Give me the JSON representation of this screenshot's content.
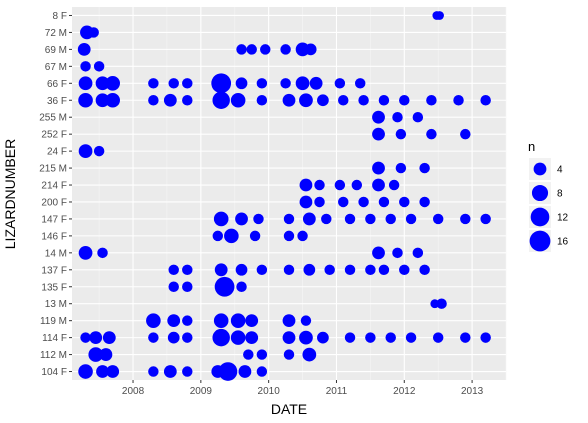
{
  "chart_data": {
    "type": "scatter",
    "xlabel": "DATE",
    "ylabel": "LIZARDNUMBER",
    "x_ticks": [
      "2008",
      "2009",
      "2010",
      "2011",
      "2012",
      "2013"
    ],
    "xlim": [
      2007.1,
      2013.5
    ],
    "categories": [
      "104 F",
      "112 M",
      "114 F",
      "119 M",
      "13 M",
      "135 F",
      "137 F",
      "14 M",
      "146 F",
      "147 F",
      "200 F",
      "214 F",
      "215 M",
      "24 F",
      "252 F",
      "255 M",
      "36 F",
      "66 F",
      "67 M",
      "69 M",
      "72 M",
      "8 F"
    ],
    "point_color": "#0000ff",
    "grid": true,
    "panel_color": "#ebebeb",
    "legend": {
      "title": "n",
      "placement": "right",
      "entries": [
        {
          "label": "4",
          "n": 4
        },
        {
          "label": "8",
          "n": 8
        },
        {
          "label": "12",
          "n": 12
        },
        {
          "label": "16",
          "n": 16
        }
      ]
    },
    "series": [
      {
        "category": "8 F",
        "points": [
          [
            2012.48,
            1
          ],
          [
            2012.52,
            1
          ]
        ]
      },
      {
        "category": "72 M",
        "points": [
          [
            2007.32,
            5
          ],
          [
            2007.42,
            2
          ]
        ]
      },
      {
        "category": "69 M",
        "points": [
          [
            2007.28,
            4
          ],
          [
            2009.6,
            2
          ],
          [
            2009.75,
            2
          ],
          [
            2009.95,
            2
          ],
          [
            2010.25,
            2
          ],
          [
            2010.5,
            5
          ],
          [
            2010.62,
            3
          ]
        ]
      },
      {
        "category": "67 M",
        "points": [
          [
            2007.3,
            2
          ],
          [
            2007.5,
            2
          ]
        ]
      },
      {
        "category": "66 F",
        "points": [
          [
            2007.3,
            5
          ],
          [
            2007.55,
            5
          ],
          [
            2007.7,
            6
          ],
          [
            2008.3,
            2
          ],
          [
            2008.6,
            2
          ],
          [
            2008.8,
            2
          ],
          [
            2009.3,
            14
          ],
          [
            2009.6,
            3
          ],
          [
            2009.9,
            2
          ],
          [
            2010.25,
            2
          ],
          [
            2010.5,
            5
          ],
          [
            2010.7,
            4
          ],
          [
            2011.05,
            2
          ],
          [
            2011.35,
            2
          ]
        ]
      },
      {
        "category": "36 F",
        "points": [
          [
            2007.3,
            6
          ],
          [
            2007.55,
            5
          ],
          [
            2007.7,
            6
          ],
          [
            2008.3,
            2
          ],
          [
            2008.55,
            4
          ],
          [
            2008.8,
            2
          ],
          [
            2009.3,
            10
          ],
          [
            2009.55,
            6
          ],
          [
            2009.9,
            2
          ],
          [
            2010.3,
            4
          ],
          [
            2010.55,
            5
          ],
          [
            2010.8,
            3
          ],
          [
            2011.1,
            2
          ],
          [
            2011.4,
            2
          ],
          [
            2011.7,
            2
          ],
          [
            2012.0,
            2
          ],
          [
            2012.4,
            2
          ],
          [
            2012.8,
            2
          ],
          [
            2013.2,
            2
          ]
        ]
      },
      {
        "category": "255 M",
        "points": [
          [
            2011.62,
            4
          ],
          [
            2011.9,
            2
          ],
          [
            2012.2,
            2
          ]
        ]
      },
      {
        "category": "252 F",
        "points": [
          [
            2011.62,
            4
          ],
          [
            2011.95,
            2
          ],
          [
            2012.4,
            2
          ],
          [
            2012.9,
            2
          ]
        ]
      },
      {
        "category": "24 F",
        "points": [
          [
            2007.3,
            5
          ],
          [
            2007.5,
            2
          ]
        ]
      },
      {
        "category": "215 M",
        "points": [
          [
            2011.62,
            4
          ],
          [
            2011.95,
            2
          ],
          [
            2012.3,
            2
          ]
        ]
      },
      {
        "category": "214 F",
        "points": [
          [
            2010.55,
            4
          ],
          [
            2010.75,
            2
          ],
          [
            2011.05,
            2
          ],
          [
            2011.3,
            2
          ],
          [
            2011.62,
            4
          ],
          [
            2011.85,
            2
          ]
        ]
      },
      {
        "category": "200 F",
        "points": [
          [
            2010.55,
            4
          ],
          [
            2010.75,
            2
          ],
          [
            2011.1,
            2
          ],
          [
            2011.4,
            2
          ],
          [
            2011.7,
            2
          ],
          [
            2012.0,
            2
          ],
          [
            2012.3,
            2
          ]
        ]
      },
      {
        "category": "147 F",
        "points": [
          [
            2009.3,
            6
          ],
          [
            2009.6,
            4
          ],
          [
            2009.85,
            2
          ],
          [
            2010.3,
            2
          ],
          [
            2010.6,
            4
          ],
          [
            2010.85,
            2
          ],
          [
            2011.2,
            2
          ],
          [
            2011.5,
            2
          ],
          [
            2011.8,
            2
          ],
          [
            2012.1,
            2
          ],
          [
            2012.5,
            2
          ],
          [
            2012.9,
            2
          ],
          [
            2013.2,
            2
          ]
        ]
      },
      {
        "category": "146 F",
        "points": [
          [
            2009.25,
            2
          ],
          [
            2009.45,
            6
          ],
          [
            2009.8,
            2
          ],
          [
            2010.3,
            2
          ],
          [
            2010.5,
            2
          ]
        ]
      },
      {
        "category": "14 M",
        "points": [
          [
            2007.3,
            5
          ],
          [
            2007.55,
            2
          ],
          [
            2011.62,
            4
          ],
          [
            2011.9,
            2
          ],
          [
            2012.2,
            2
          ]
        ]
      },
      {
        "category": "137 F",
        "points": [
          [
            2008.6,
            2
          ],
          [
            2008.8,
            2
          ],
          [
            2009.3,
            4
          ],
          [
            2009.6,
            3
          ],
          [
            2009.9,
            2
          ],
          [
            2010.3,
            2
          ],
          [
            2010.6,
            3
          ],
          [
            2010.9,
            2
          ],
          [
            2011.2,
            2
          ],
          [
            2011.5,
            2
          ],
          [
            2011.7,
            2
          ],
          [
            2012.0,
            2
          ],
          [
            2012.3,
            2
          ]
        ]
      },
      {
        "category": "135 F",
        "points": [
          [
            2008.6,
            2
          ],
          [
            2008.8,
            2
          ],
          [
            2009.35,
            14
          ],
          [
            2009.6,
            2
          ]
        ]
      },
      {
        "category": "13 M",
        "points": [
          [
            2012.45,
            1
          ],
          [
            2012.55,
            2
          ]
        ]
      },
      {
        "category": "119 M",
        "points": [
          [
            2008.3,
            6
          ],
          [
            2008.6,
            4
          ],
          [
            2008.8,
            2
          ],
          [
            2009.3,
            6
          ],
          [
            2009.55,
            6
          ],
          [
            2009.75,
            4
          ],
          [
            2010.3,
            4
          ],
          [
            2010.55,
            2
          ]
        ]
      },
      {
        "category": "114 F",
        "points": [
          [
            2007.3,
            2
          ],
          [
            2007.45,
            4
          ],
          [
            2007.65,
            4
          ],
          [
            2008.3,
            2
          ],
          [
            2008.6,
            3
          ],
          [
            2008.8,
            2
          ],
          [
            2009.3,
            10
          ],
          [
            2009.55,
            6
          ],
          [
            2009.75,
            4
          ],
          [
            2010.3,
            4
          ],
          [
            2010.55,
            5
          ],
          [
            2010.8,
            3
          ],
          [
            2011.2,
            2
          ],
          [
            2011.5,
            2
          ],
          [
            2011.8,
            2
          ],
          [
            2012.1,
            2
          ],
          [
            2012.5,
            2
          ],
          [
            2012.9,
            2
          ],
          [
            2013.2,
            2
          ]
        ]
      },
      {
        "category": "112 M",
        "points": [
          [
            2007.45,
            6
          ],
          [
            2007.6,
            4
          ],
          [
            2009.7,
            2
          ],
          [
            2009.9,
            2
          ],
          [
            2010.3,
            2
          ],
          [
            2010.6,
            5
          ]
        ]
      },
      {
        "category": "104 F",
        "points": [
          [
            2007.3,
            6
          ],
          [
            2007.55,
            4
          ],
          [
            2007.7,
            4
          ],
          [
            2008.3,
            2
          ],
          [
            2008.55,
            4
          ],
          [
            2008.8,
            2
          ],
          [
            2009.25,
            4
          ],
          [
            2009.4,
            12
          ],
          [
            2009.65,
            4
          ],
          [
            2009.9,
            2
          ]
        ]
      }
    ]
  }
}
